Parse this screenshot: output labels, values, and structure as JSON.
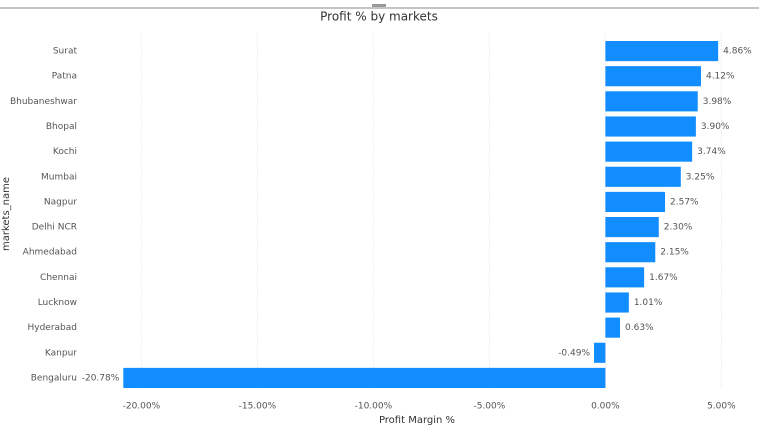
{
  "chart_data": {
    "type": "hbar",
    "title": "Profit % by markets",
    "x_label": "Profit Margin %",
    "y_label": "markets_name",
    "categories": [
      "Surat",
      "Patna",
      "Bhubaneshwar",
      "Bhopal",
      "Kochi",
      "Mumbai",
      "Nagpur",
      "Delhi NCR",
      "Ahmedabad",
      "Chennai",
      "Lucknow",
      "Hyderabad",
      "Kanpur",
      "Bengaluru"
    ],
    "values": [
      4.86,
      4.12,
      3.98,
      3.9,
      3.74,
      3.25,
      2.57,
      2.3,
      2.15,
      1.67,
      1.01,
      0.63,
      -0.49,
      -20.78
    ],
    "value_labels": [
      "4.86%",
      "4.12%",
      "3.98%",
      "3.90%",
      "3.74%",
      "3.25%",
      "2.57%",
      "2.30%",
      "2.15%",
      "1.67%",
      "1.01%",
      "0.63%",
      "-0.49%",
      "-20.78%"
    ],
    "color": "#118dff",
    "xlim": [
      -22,
      5.5
    ],
    "xticks": [
      {
        "value": -20,
        "label": "-20.00%"
      },
      {
        "value": -15,
        "label": "-15.00%"
      },
      {
        "value": -10,
        "label": "-10.00%"
      },
      {
        "value": -5,
        "label": "-5.00%"
      },
      {
        "value": 0,
        "label": "0.00%"
      },
      {
        "value": 5,
        "label": "5.00%"
      }
    ],
    "grid": true
  }
}
